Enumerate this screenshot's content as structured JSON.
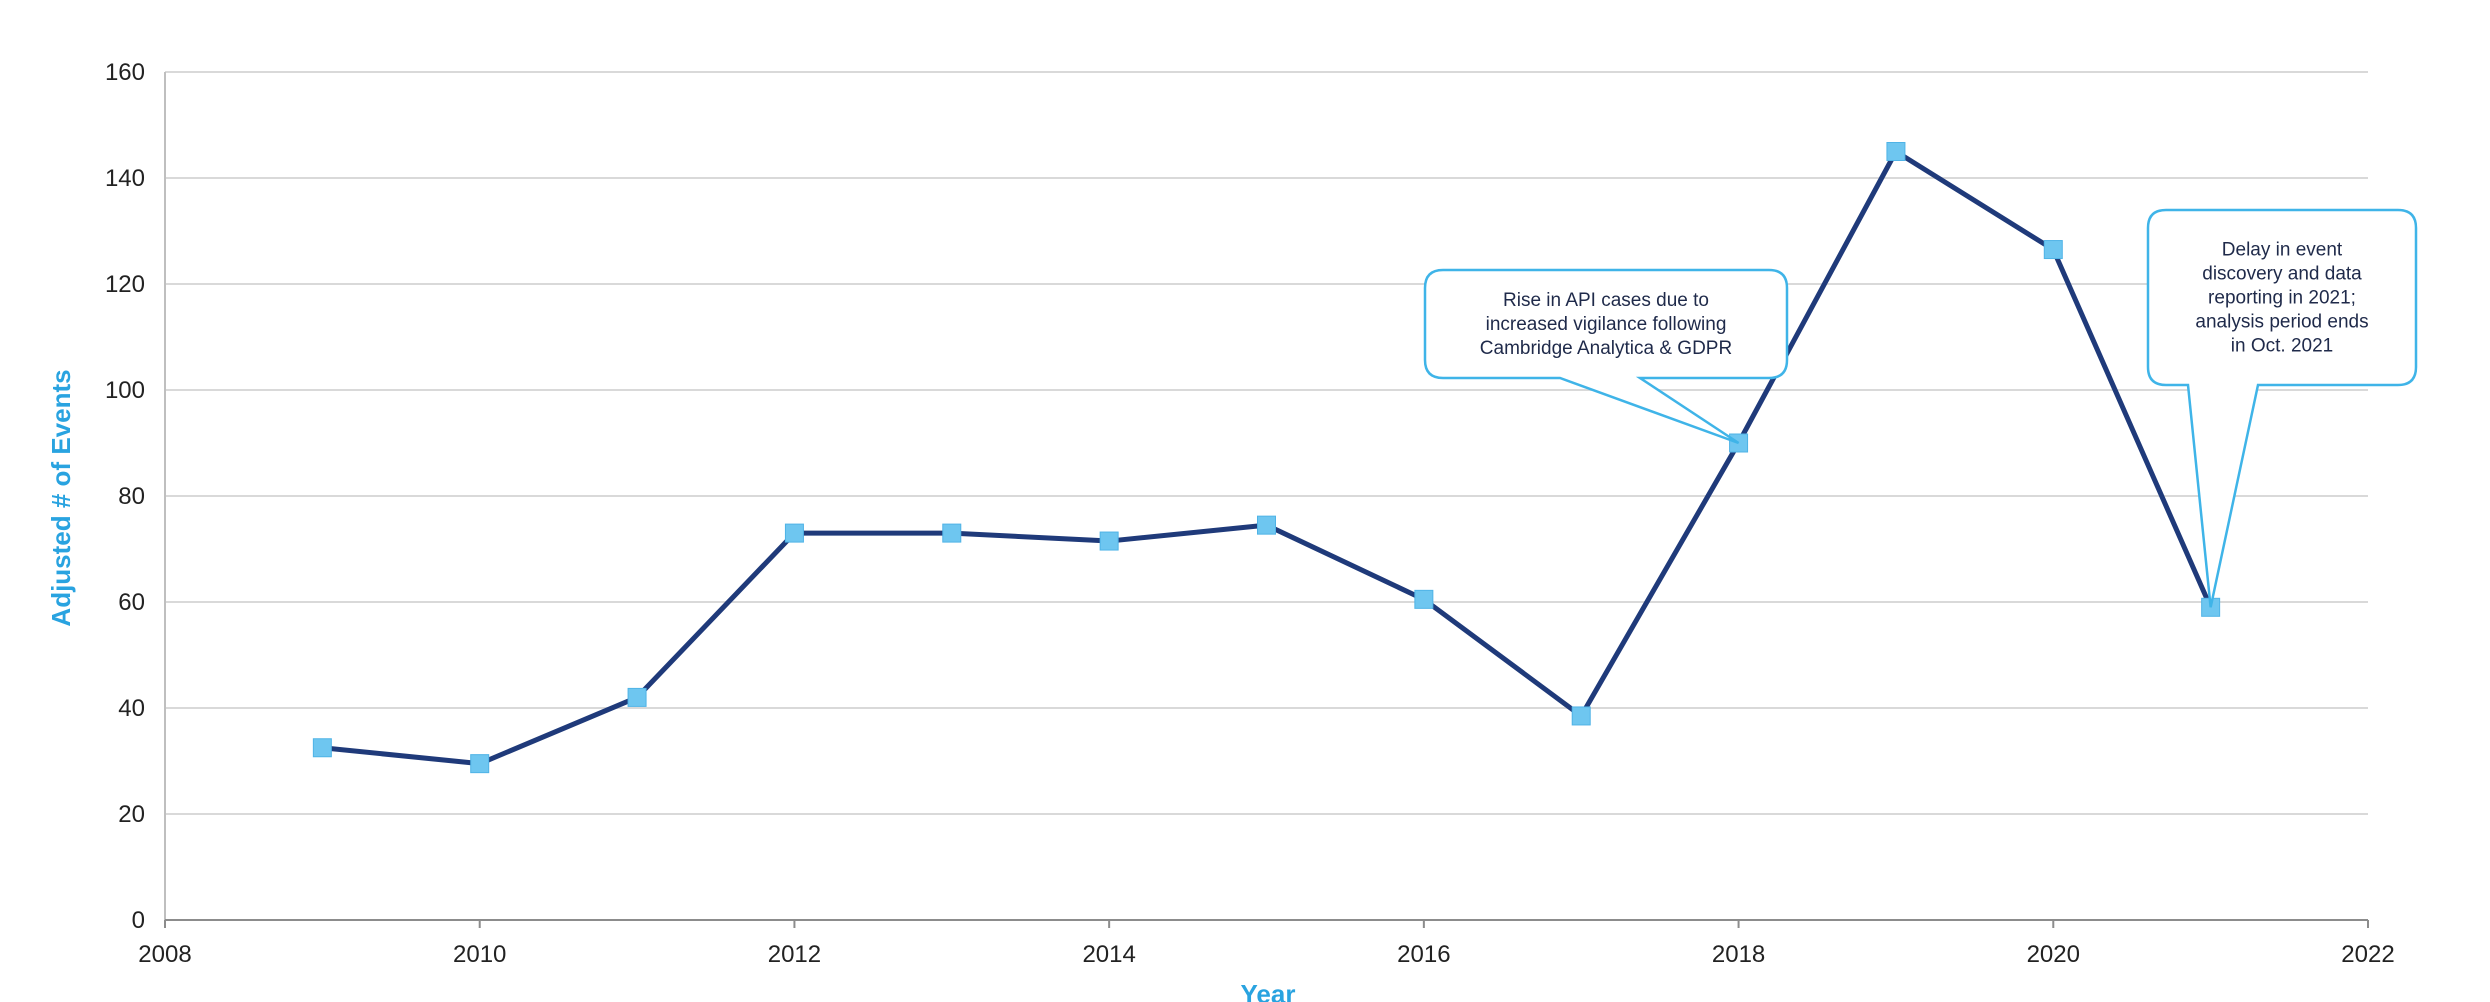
{
  "chart_data": {
    "type": "line",
    "title": "",
    "xlabel": "Year",
    "ylabel": "Adjusted # of Events",
    "xlim": [
      2008,
      2022
    ],
    "ylim": [
      0,
      160
    ],
    "x_ticks": [
      2008,
      2010,
      2012,
      2014,
      2016,
      2018,
      2020,
      2022
    ],
    "y_ticks": [
      0,
      20,
      40,
      60,
      80,
      100,
      120,
      140,
      160
    ],
    "grid": "horizontal",
    "legend": "none",
    "series": [
      {
        "x": [
          2009,
          2010,
          2011,
          2012,
          2013,
          2014,
          2015,
          2016,
          2017,
          2018,
          2019,
          2020,
          2021
        ],
        "y": [
          32.5,
          29.5,
          42,
          73,
          73,
          71.5,
          74.5,
          60.5,
          38.5,
          90,
          145,
          126.5,
          59
        ],
        "line_color": "#1f3a7a",
        "marker_color": "#6ec6f0",
        "marker": "square"
      }
    ],
    "annotations": [
      {
        "lines": [
          "Rise in API cases due to",
          "increased vigilance following",
          "Cambridge Analytica & GDPR"
        ],
        "x": 2018,
        "y": 90
      },
      {
        "lines": [
          "Delay in event",
          "discovery and data",
          "reporting in 2021;",
          "analysis period ends",
          "in Oct. 2021"
        ],
        "x": 2021,
        "y": 59
      }
    ]
  }
}
